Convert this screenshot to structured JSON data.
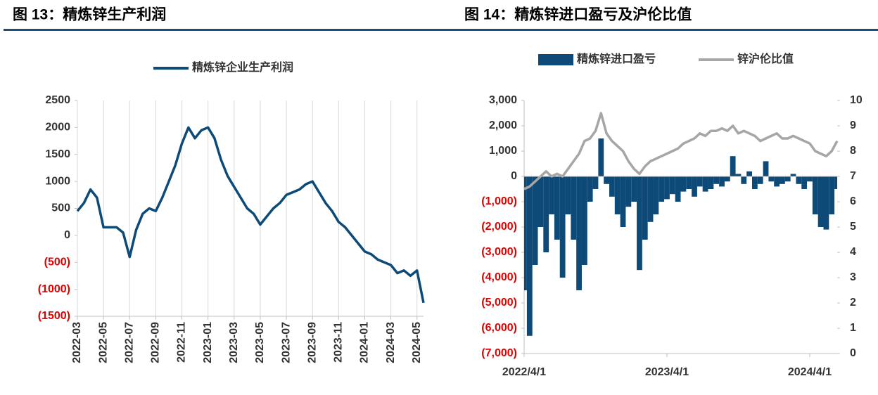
{
  "chart_data": [
    {
      "type": "line",
      "title": "图 13：精炼锌生产利润",
      "categories": [
        "2022-03",
        null,
        null,
        null,
        "2022-05",
        null,
        null,
        null,
        "2022-07",
        null,
        null,
        null,
        "2022-09",
        null,
        null,
        null,
        "2022-11",
        null,
        null,
        null,
        "2023-01",
        null,
        null,
        null,
        "2023-03",
        null,
        null,
        null,
        "2023-05",
        null,
        null,
        null,
        "2023-07",
        null,
        null,
        null,
        "2023-09",
        null,
        null,
        null,
        "2023-11",
        null,
        null,
        null,
        "2024-01",
        null,
        null,
        null,
        "2024-03",
        null,
        null,
        null,
        "2024-05",
        null
      ],
      "series": [
        {
          "name": "精炼锌企业生产利润",
          "color": "#0d4a78",
          "values": [
            450,
            600,
            850,
            700,
            150,
            150,
            150,
            50,
            -400,
            100,
            400,
            500,
            450,
            700,
            1000,
            1300,
            1700,
            2000,
            1800,
            1950,
            2000,
            1800,
            1400,
            1100,
            900,
            700,
            500,
            400,
            200,
            350,
            500,
            600,
            750,
            800,
            850,
            950,
            1000,
            800,
            600,
            450,
            250,
            150,
            0,
            -150,
            -300,
            -350,
            -450,
            -500,
            -550,
            -700,
            -650,
            -750,
            -650,
            -1250
          ]
        }
      ],
      "ylim": [
        -1500,
        2500
      ],
      "yticks": [
        {
          "value": -1500,
          "label": "(1500)"
        },
        {
          "value": -1000,
          "label": "(1000)"
        },
        {
          "value": -500,
          "label": "(500)"
        },
        0,
        500,
        1000,
        1500,
        2000,
        2500
      ],
      "grid": true,
      "legend": "top"
    },
    {
      "type": "combo",
      "title": "图 14：精炼锌进口盈亏及沪伦比值",
      "categories": [
        "2022/4/1",
        null,
        null,
        null,
        null,
        null,
        null,
        null,
        null,
        null,
        null,
        null,
        null,
        null,
        null,
        null,
        null,
        null,
        null,
        null,
        null,
        null,
        null,
        null,
        null,
        null,
        "2023/4/1",
        null,
        null,
        null,
        null,
        null,
        null,
        null,
        null,
        null,
        null,
        null,
        null,
        null,
        null,
        null,
        null,
        null,
        null,
        null,
        null,
        null,
        null,
        null,
        null,
        null,
        "2024/4/1",
        null,
        null,
        null,
        null,
        null
      ],
      "series": [
        {
          "name": "精炼锌进口盈亏",
          "type": "bar",
          "color": "#0d4a78",
          "values": [
            -4500,
            -6300,
            -3500,
            -2000,
            -3000,
            -1500,
            -2500,
            -4000,
            -1500,
            -2500,
            -4500,
            -3500,
            -1000,
            -500,
            1500,
            -300,
            -800,
            -1500,
            -2000,
            -1200,
            -1000,
            -3700,
            -2500,
            -1800,
            -1500,
            -1000,
            -900,
            -700,
            -1000,
            -600,
            -500,
            -800,
            -400,
            -600,
            -500,
            -300,
            -400,
            -200,
            800,
            100,
            -300,
            200,
            -500,
            -300,
            600,
            -200,
            -400,
            -300,
            -200,
            100,
            -300,
            -500,
            -200,
            -1500,
            -2000,
            -2100,
            -1500,
            -500
          ]
        },
        {
          "name": "锌沪伦比值",
          "type": "line",
          "axis": "y2",
          "color": "#a6a6a6",
          "values": [
            6.5,
            6.6,
            6.8,
            7.0,
            7.2,
            7.0,
            7.1,
            7.0,
            7.3,
            7.6,
            7.9,
            8.4,
            8.5,
            8.8,
            9.5,
            8.7,
            8.4,
            8.2,
            8.0,
            7.6,
            7.3,
            7.1,
            7.4,
            7.6,
            7.7,
            7.8,
            7.9,
            8.0,
            8.1,
            8.3,
            8.4,
            8.5,
            8.7,
            8.6,
            8.8,
            8.8,
            8.9,
            8.8,
            9.0,
            8.7,
            8.8,
            8.7,
            8.6,
            8.4,
            8.5,
            8.6,
            8.7,
            8.5,
            8.5,
            8.6,
            8.5,
            8.4,
            8.3,
            8.0,
            7.9,
            7.8,
            8.0,
            8.4
          ]
        }
      ],
      "ylim": [
        -7000,
        3000
      ],
      "yticks": [
        {
          "value": -7000,
          "label": "(7,000)"
        },
        {
          "value": -6000,
          "label": "(6,000)"
        },
        {
          "value": -5000,
          "label": "(5,000)"
        },
        {
          "value": -4000,
          "label": "(4,000)"
        },
        {
          "value": -3000,
          "label": "(3,000)"
        },
        {
          "value": -2000,
          "label": "(2,000)"
        },
        {
          "value": -1000,
          "label": "(1,000)"
        },
        0,
        {
          "value": 1000,
          "label": "1,000"
        },
        {
          "value": 2000,
          "label": "2,000"
        },
        {
          "value": 3000,
          "label": "3,000"
        }
      ],
      "y2lim": [
        0,
        10
      ],
      "y2ticks": [
        0,
        1,
        2,
        3,
        4,
        5,
        6,
        7,
        8,
        9,
        10
      ],
      "grid": false,
      "legend": "top"
    }
  ]
}
